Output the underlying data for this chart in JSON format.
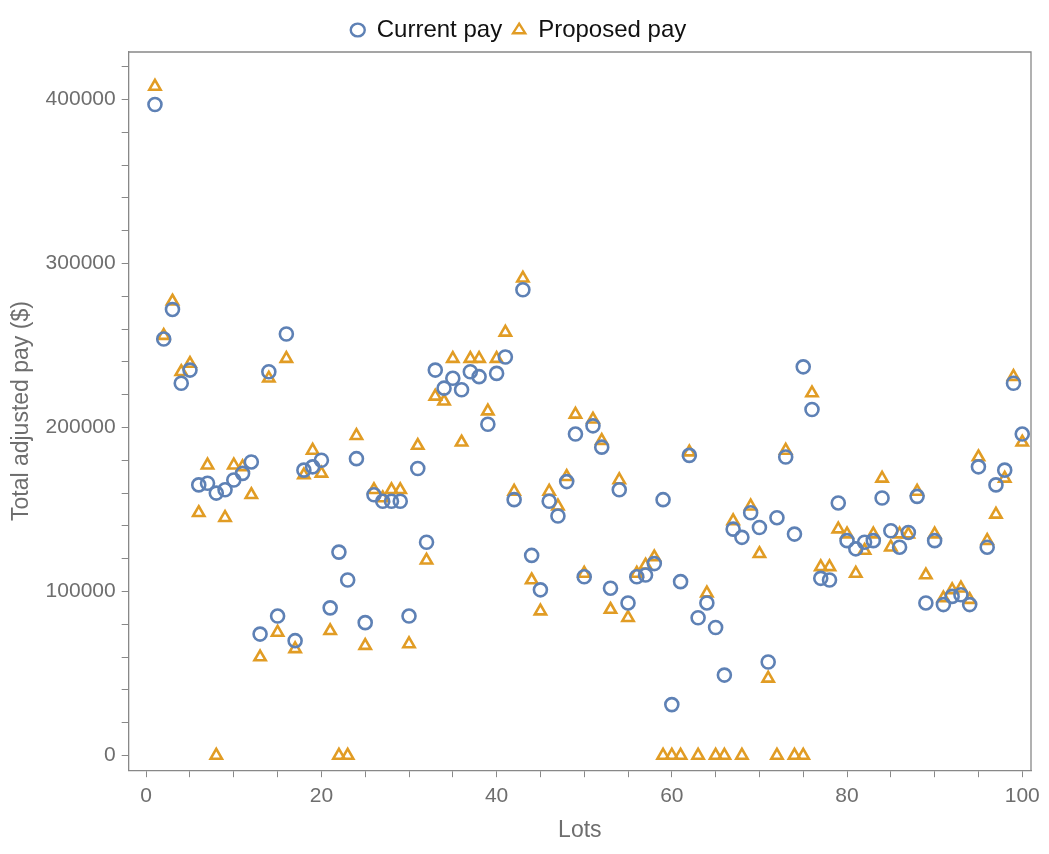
{
  "chart_data": {
    "type": "scatter",
    "xlabel": "Lots",
    "ylabel": "Total adjusted pay ($)",
    "legend": "top",
    "grid": false,
    "x": [
      1,
      2,
      3,
      4,
      5,
      6,
      7,
      8,
      9,
      10,
      11,
      12,
      13,
      14,
      15,
      16,
      17,
      18,
      19,
      20,
      21,
      22,
      23,
      24,
      25,
      26,
      27,
      28,
      29,
      30,
      31,
      32,
      33,
      34,
      35,
      36,
      37,
      38,
      39,
      40,
      41,
      42,
      43,
      44,
      45,
      46,
      47,
      48,
      49,
      50,
      51,
      52,
      53,
      54,
      55,
      56,
      57,
      58,
      59,
      60,
      61,
      62,
      63,
      64,
      65,
      66,
      67,
      68,
      69,
      70,
      71,
      72,
      73,
      74,
      75,
      76,
      77,
      78,
      79,
      80,
      81,
      82,
      83,
      84,
      85,
      86,
      87,
      88,
      89,
      90,
      91,
      92,
      93,
      94,
      95,
      96,
      97,
      98,
      99,
      100
    ],
    "xlim": [
      -2,
      101
    ],
    "xticks": [
      0,
      {
        "value": 5,
        "label": null
      },
      {
        "value": 10,
        "label": null
      },
      {
        "value": 15,
        "label": null
      },
      20,
      {
        "value": 25,
        "label": null
      },
      {
        "value": 30,
        "label": null
      },
      {
        "value": 35,
        "label": null
      },
      40,
      {
        "value": 45,
        "label": null
      },
      {
        "value": 50,
        "label": null
      },
      {
        "value": 55,
        "label": null
      },
      60,
      {
        "value": 65,
        "label": null
      },
      {
        "value": 70,
        "label": null
      },
      {
        "value": 75,
        "label": null
      },
      80,
      {
        "value": 85,
        "label": null
      },
      {
        "value": 90,
        "label": null
      },
      {
        "value": 95,
        "label": null
      },
      100
    ],
    "ylim": [
      -9000,
      429000
    ],
    "yticks": [
      0,
      {
        "value": 20000,
        "label": null
      },
      {
        "value": 40000,
        "label": null
      },
      {
        "value": 60000,
        "label": null
      },
      {
        "value": 80000,
        "label": null
      },
      100000,
      {
        "value": 120000,
        "label": null
      },
      {
        "value": 140000,
        "label": null
      },
      {
        "value": 160000,
        "label": null
      },
      {
        "value": 180000,
        "label": null
      },
      200000,
      {
        "value": 220000,
        "label": null
      },
      {
        "value": 240000,
        "label": null
      },
      {
        "value": 260000,
        "label": null
      },
      {
        "value": 280000,
        "label": null
      },
      300000,
      {
        "value": 320000,
        "label": null
      },
      {
        "value": 340000,
        "label": null
      },
      {
        "value": 360000,
        "label": null
      },
      {
        "value": 380000,
        "label": null
      },
      400000,
      {
        "value": 420000,
        "label": null
      }
    ],
    "series": [
      {
        "name": "Current pay",
        "color": "#5e81b5",
        "marker": "circle",
        "values": [
          397000,
          254000,
          272000,
          227000,
          235000,
          165000,
          166000,
          160000,
          162000,
          168000,
          172000,
          179000,
          74000,
          234000,
          85000,
          257000,
          70000,
          174000,
          176000,
          180000,
          90000,
          124000,
          107000,
          181000,
          81000,
          159000,
          155000,
          155000,
          155000,
          85000,
          175000,
          130000,
          235000,
          224000,
          230000,
          223000,
          234000,
          231000,
          202000,
          233000,
          243000,
          156000,
          284000,
          122000,
          101000,
          155000,
          146000,
          167000,
          196000,
          109000,
          201000,
          188000,
          102000,
          162000,
          93000,
          109000,
          110000,
          117000,
          156000,
          31000,
          106000,
          183000,
          84000,
          93000,
          78000,
          49000,
          138000,
          133000,
          148000,
          139000,
          57000,
          145000,
          182000,
          135000,
          237000,
          211000,
          108000,
          107000,
          154000,
          131000,
          126000,
          130000,
          131000,
          157000,
          137000,
          127000,
          136000,
          158000,
          93000,
          131000,
          92000,
          97000,
          98000,
          92000,
          176000,
          127000,
          165000,
          174000,
          227000,
          196000
        ]
      },
      {
        "name": "Proposed pay",
        "color": "#e19c24",
        "marker": "triangle",
        "values": [
          408000,
          256000,
          277000,
          234000,
          239000,
          148000,
          177000,
          0,
          145000,
          177000,
          176000,
          159000,
          60000,
          230000,
          75000,
          242000,
          65000,
          171000,
          186000,
          172000,
          76000,
          0,
          0,
          195000,
          67000,
          162000,
          157000,
          162000,
          162000,
          68000,
          189000,
          119000,
          219000,
          216000,
          242000,
          191000,
          242000,
          242000,
          210000,
          242000,
          258000,
          161000,
          291000,
          107000,
          88000,
          161000,
          152000,
          170000,
          208000,
          111000,
          205000,
          192000,
          89000,
          168000,
          84000,
          111000,
          116000,
          121000,
          0,
          0,
          0,
          185000,
          0,
          99000,
          0,
          0,
          143000,
          0,
          152000,
          123000,
          47000,
          0,
          186000,
          0,
          0,
          221000,
          115000,
          115000,
          138000,
          135000,
          111000,
          125000,
          135000,
          169000,
          127000,
          135000,
          135000,
          161000,
          110000,
          135000,
          96000,
          101000,
          102000,
          95000,
          182000,
          131000,
          147000,
          169000,
          231000,
          191000
        ]
      }
    ]
  }
}
